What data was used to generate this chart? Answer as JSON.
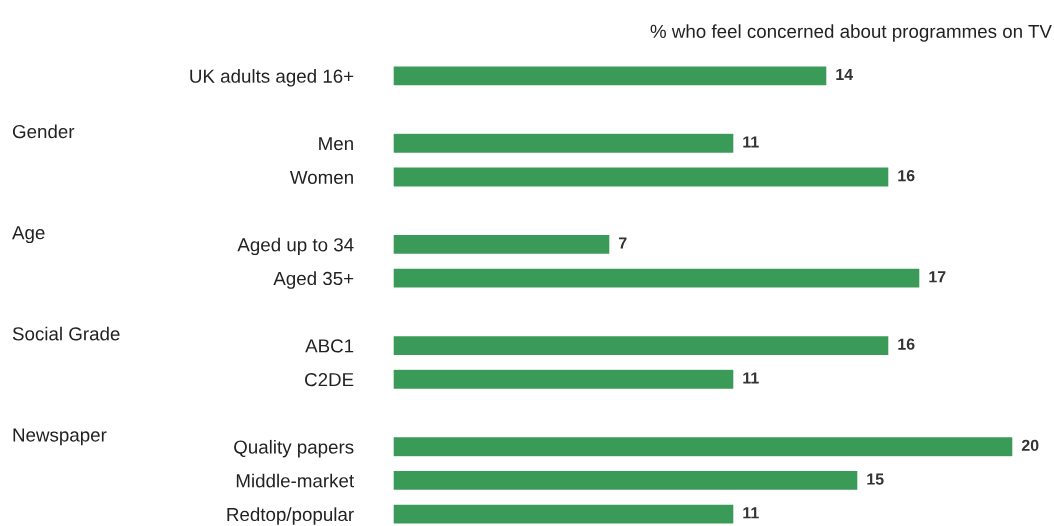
{
  "chart_data": {
    "type": "bar",
    "orientation": "horizontal",
    "title": "% who feel concerned about programmes on TV",
    "categories": [
      "UK adults aged 16+",
      null,
      "Men",
      "Women",
      null,
      "Aged up to 34",
      "Aged 35+",
      null,
      "ABC1",
      "C2DE",
      null,
      "Quality papers",
      "Middle-market",
      "Redtop/popular"
    ],
    "values": [
      14,
      null,
      11,
      16,
      null,
      7,
      17,
      null,
      16,
      11,
      null,
      20,
      15,
      11
    ],
    "color": "#3a9a57",
    "data_labels": true,
    "tick_labels": "y",
    "grid": false,
    "legend": false,
    "annotations": [
      "Gender",
      "Age",
      "Social Grade",
      "Newspaper"
    ]
  }
}
